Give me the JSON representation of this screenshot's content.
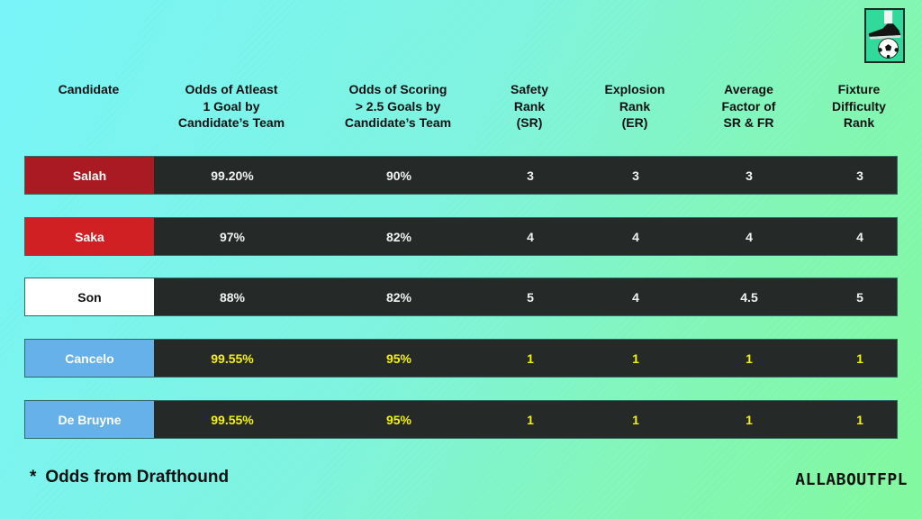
{
  "logo": {
    "icon": "football-boot-and-ball-icon",
    "bg_color": "#31d99a"
  },
  "header": {
    "columns": [
      {
        "label": "Candidate"
      },
      {
        "label": "Odds of Atleast\n1 Goal by\nCandidate’s Team"
      },
      {
        "label": "Odds of Scoring\n> 2.5 Goals by\nCandidate’s Team"
      },
      {
        "label": "Safety\nRank\n(SR)"
      },
      {
        "label": "Explosion\nRank\n(ER)"
      },
      {
        "label": "Average\nFactor of\nSR & FR"
      },
      {
        "label": "Fixture\nDifficulty\nRank"
      }
    ]
  },
  "rows": [
    {
      "name": "Salah",
      "name_bg": "#a91a22",
      "name_color": "#ffffff",
      "highlight": false,
      "values": [
        "99.20%",
        "90%",
        "3",
        "3",
        "3",
        "3"
      ]
    },
    {
      "name": "Saka",
      "name_bg": "#d12024",
      "name_color": "#ffffff",
      "highlight": false,
      "values": [
        "97%",
        "82%",
        "4",
        "4",
        "4",
        "4"
      ]
    },
    {
      "name": "Son",
      "name_bg": "#ffffff",
      "name_color": "#111111",
      "highlight": false,
      "values": [
        "88%",
        "82%",
        "5",
        "4",
        "4.5",
        "5"
      ]
    },
    {
      "name": "Cancelo",
      "name_bg": "#67b1ea",
      "name_color": "#ffffff",
      "highlight": true,
      "values": [
        "99.55%",
        "95%",
        "1",
        "1",
        "1",
        "1"
      ]
    },
    {
      "name": "De Bruyne",
      "name_bg": "#67b1ea",
      "name_color": "#ffffff",
      "highlight": true,
      "values": [
        "99.55%",
        "95%",
        "1",
        "1",
        "1",
        "1"
      ]
    }
  ],
  "colors": {
    "row_bg": "#252a29",
    "value_text": "#f2f2f2",
    "highlight_text": "#f3f20c"
  },
  "footer": {
    "asterisk": "*",
    "note": "Odds from Drafthound",
    "brand": "ALLABOUTFPL"
  }
}
